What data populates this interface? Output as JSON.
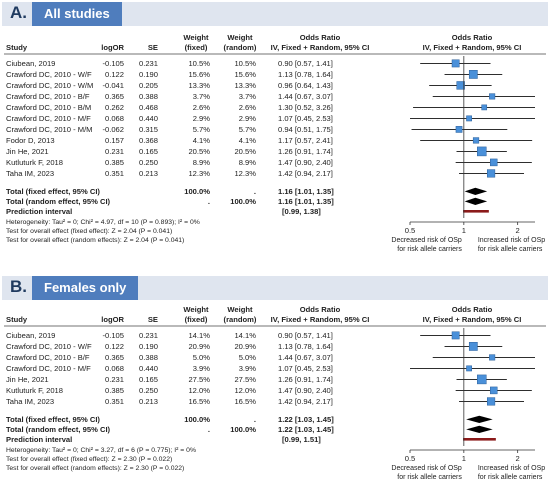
{
  "chart_data": [
    {
      "type": "forest",
      "panel_letter": "A.",
      "title": "All studies",
      "columns": {
        "study": "Study",
        "logor": "logOR",
        "se": "SE",
        "wf1": "Weight",
        "wf2": "(fixed)",
        "wr1": "Weight",
        "wr2": "(random)",
        "or1": "Odds Ratio",
        "or2": "IV, Fixed + Random, 95% CI",
        "pl1": "Odds Ratio",
        "pl2": "IV, Fixed + Random, 95% CI"
      },
      "studies": [
        {
          "study": "Ciubean, 2019",
          "logor": "-0.105",
          "se": "0.231",
          "wf": "10.5%",
          "wr": "10.5%",
          "ci": "0.90 [0.57, 1.41]",
          "or": 0.9,
          "lo": 0.57,
          "hi": 1.41
        },
        {
          "study": "Crawford DC, 2010 - W/F",
          "logor": "0.122",
          "se": "0.190",
          "wf": "15.6%",
          "wr": "15.6%",
          "ci": "1.13 [0.78, 1.64]",
          "or": 1.13,
          "lo": 0.78,
          "hi": 1.64
        },
        {
          "study": "Crawford DC, 2010 - W/M",
          "logor": "-0.041",
          "se": "0.205",
          "wf": "13.3%",
          "wr": "13.3%",
          "ci": "0.96 [0.64, 1.43]",
          "or": 0.96,
          "lo": 0.64,
          "hi": 1.43
        },
        {
          "study": "Crawford DC, 2010 - B/F",
          "logor": "0.365",
          "se": "0.388",
          "wf": "3.7%",
          "wr": "3.7%",
          "ci": "1.44 [0.67, 3.07]",
          "or": 1.44,
          "lo": 0.67,
          "hi": 3.07
        },
        {
          "study": "Crawford DC, 2010 - B/M",
          "logor": "0.262",
          "se": "0.468",
          "wf": "2.6%",
          "wr": "2.6%",
          "ci": "1.30 [0.52, 3.26]",
          "or": 1.3,
          "lo": 0.52,
          "hi": 3.26
        },
        {
          "study": "Crawford DC, 2010 - M/F",
          "logor": "0.068",
          "se": "0.440",
          "wf": "2.9%",
          "wr": "2.9%",
          "ci": "1.07 [0.45, 2.53]",
          "or": 1.07,
          "lo": 0.45,
          "hi": 2.53
        },
        {
          "study": "Crawford DC, 2010 - M/M",
          "logor": "-0.062",
          "se": "0.315",
          "wf": "5.7%",
          "wr": "5.7%",
          "ci": "0.94 [0.51, 1.75]",
          "or": 0.94,
          "lo": 0.51,
          "hi": 1.75
        },
        {
          "study": "Fodor D, 2013",
          "logor": "0.157",
          "se": "0.368",
          "wf": "4.1%",
          "wr": "4.1%",
          "ci": "1.17 [0.57, 2.41]",
          "or": 1.17,
          "lo": 0.57,
          "hi": 2.41
        },
        {
          "study": "Jin He, 2021",
          "logor": "0.231",
          "se": "0.165",
          "wf": "20.5%",
          "wr": "20.5%",
          "ci": "1.26 [0.91, 1.74]",
          "or": 1.26,
          "lo": 0.91,
          "hi": 1.74
        },
        {
          "study": "Kutluturk F, 2018",
          "logor": "0.385",
          "se": "0.250",
          "wf": "8.9%",
          "wr": "8.9%",
          "ci": "1.47 [0.90, 2.40]",
          "or": 1.47,
          "lo": 0.9,
          "hi": 2.4
        },
        {
          "study": "Taha IM, 2023",
          "logor": "0.351",
          "se": "0.213",
          "wf": "12.3%",
          "wr": "12.3%",
          "ci": "1.42 [0.94, 2.17]",
          "or": 1.42,
          "lo": 0.94,
          "hi": 2.17
        }
      ],
      "pooled": [
        {
          "label": "Total (fixed effect, 95% CI)",
          "wf": "100.0%",
          "wr": ".",
          "ci": "1.16 [1.01, 1.35]",
          "or": 1.16,
          "lo": 1.01,
          "hi": 1.35
        },
        {
          "label": "Total (random effect, 95% CI)",
          "wf": ".",
          "wr": "100.0%",
          "ci": "1.16 [1.01, 1.35]",
          "or": 1.16,
          "lo": 1.01,
          "hi": 1.35
        }
      ],
      "prediction": {
        "label": "Prediction interval",
        "ci": "[0.99, 1.38]",
        "lo": 0.99,
        "hi": 1.38
      },
      "notes": [
        "Heterogeneity: Tau² = 0; Chi² = 4.97, df = 10 (P = 0.893); I² = 0%",
        "Test for overall effect (fixed effect): Z = 2.04 (P = 0.041)",
        "Test for overall effect (random effects): Z = 2.04 (P = 0.041)"
      ],
      "axis": {
        "scale": "log",
        "range": [
          0.5,
          2.5
        ],
        "ticks": [
          0.5,
          1,
          2
        ],
        "tick_labels": [
          "0.5",
          "1",
          "2"
        ]
      },
      "xlabel_left": [
        "Decreased risk of OSp",
        "for risk allele carriers"
      ],
      "xlabel_right": [
        "Increased risk of OSp",
        "for risk allele carriers"
      ]
    },
    {
      "type": "forest",
      "panel_letter": "B.",
      "title": "Females only",
      "columns": {
        "study": "Study",
        "logor": "logOR",
        "se": "SE",
        "wf1": "Weight",
        "wf2": "(fixed)",
        "wr1": "Weight",
        "wr2": "(random)",
        "or1": "Odds Ratio",
        "or2": "IV, Fixed + Random, 95% CI",
        "pl1": "Odds Ratio",
        "pl2": "IV, Fixed + Random, 95% CI"
      },
      "studies": [
        {
          "study": "Ciubean, 2019",
          "logor": "-0.105",
          "se": "0.231",
          "wf": "14.1%",
          "wr": "14.1%",
          "ci": "0.90 [0.57, 1.41]",
          "or": 0.9,
          "lo": 0.57,
          "hi": 1.41
        },
        {
          "study": "Crawford DC, 2010 - W/F",
          "logor": "0.122",
          "se": "0.190",
          "wf": "20.9%",
          "wr": "20.9%",
          "ci": "1.13 [0.78, 1.64]",
          "or": 1.13,
          "lo": 0.78,
          "hi": 1.64
        },
        {
          "study": "Crawford DC, 2010 - B/F",
          "logor": "0.365",
          "se": "0.388",
          "wf": "5.0%",
          "wr": "5.0%",
          "ci": "1.44 [0.67, 3.07]",
          "or": 1.44,
          "lo": 0.67,
          "hi": 3.07
        },
        {
          "study": "Crawford DC, 2010 - M/F",
          "logor": "0.068",
          "se": "0.440",
          "wf": "3.9%",
          "wr": "3.9%",
          "ci": "1.07 [0.45, 2.53]",
          "or": 1.07,
          "lo": 0.45,
          "hi": 2.53
        },
        {
          "study": "Jin He, 2021",
          "logor": "0.231",
          "se": "0.165",
          "wf": "27.5%",
          "wr": "27.5%",
          "ci": "1.26 [0.91, 1.74]",
          "or": 1.26,
          "lo": 0.91,
          "hi": 1.74
        },
        {
          "study": "Kutluturk F, 2018",
          "logor": "0.385",
          "se": "0.250",
          "wf": "12.0%",
          "wr": "12.0%",
          "ci": "1.47 [0.90, 2.40]",
          "or": 1.47,
          "lo": 0.9,
          "hi": 2.4
        },
        {
          "study": "Taha IM, 2023",
          "logor": "0.351",
          "se": "0.213",
          "wf": "16.5%",
          "wr": "16.5%",
          "ci": "1.42 [0.94, 2.17]",
          "or": 1.42,
          "lo": 0.94,
          "hi": 2.17
        }
      ],
      "pooled": [
        {
          "label": "Total (fixed effect, 95% CI)",
          "wf": "100.0%",
          "wr": ".",
          "ci": "1.22 [1.03, 1.45]",
          "or": 1.22,
          "lo": 1.03,
          "hi": 1.45
        },
        {
          "label": "Total (random effect, 95% CI)",
          "wf": ".",
          "wr": "100.0%",
          "ci": "1.22 [1.03, 1.45]",
          "or": 1.22,
          "lo": 1.03,
          "hi": 1.45
        }
      ],
      "prediction": {
        "label": "Prediction interval",
        "ci": "[0.99, 1.51]",
        "lo": 0.99,
        "hi": 1.51
      },
      "notes": [
        "Heterogeneity: Tau² = 0; Chi² = 3.27, df = 6 (P = 0.775); I² = 0%",
        "Test for overall effect (fixed effect): Z = 2.30 (P = 0.022)",
        "Test for overall effect (random effects): Z = 2.30 (P = 0.022)"
      ],
      "axis": {
        "scale": "log",
        "range": [
          0.5,
          2.5
        ],
        "ticks": [
          0.5,
          1,
          2
        ],
        "tick_labels": [
          "0.5",
          "1",
          "2"
        ]
      },
      "xlabel_left": [
        "Decreased risk of OSp",
        "for risk allele carriers"
      ],
      "xlabel_right": [
        "Increased risk of OSp",
        "for risk allele carriers"
      ]
    }
  ],
  "colors": {
    "accent": "#4f7dbd",
    "banner_bg": "#dfe5ef",
    "box": "#4a90d9",
    "box_edge": "#2b5f9a",
    "prediction": "#8b1a1a"
  }
}
